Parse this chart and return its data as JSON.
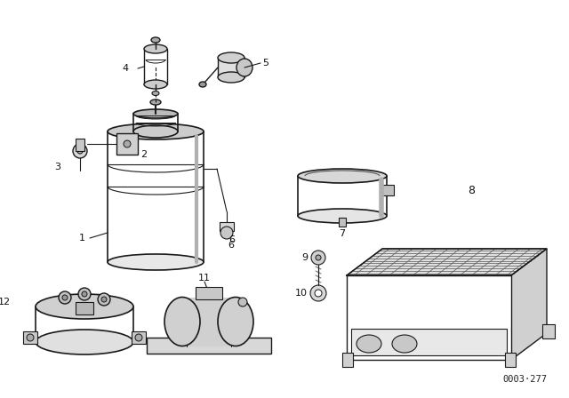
{
  "bg_color": "#ffffff",
  "line_color": "#1a1a1a",
  "watermark": "0003·277",
  "figsize": [
    6.4,
    4.48
  ],
  "dpi": 100
}
